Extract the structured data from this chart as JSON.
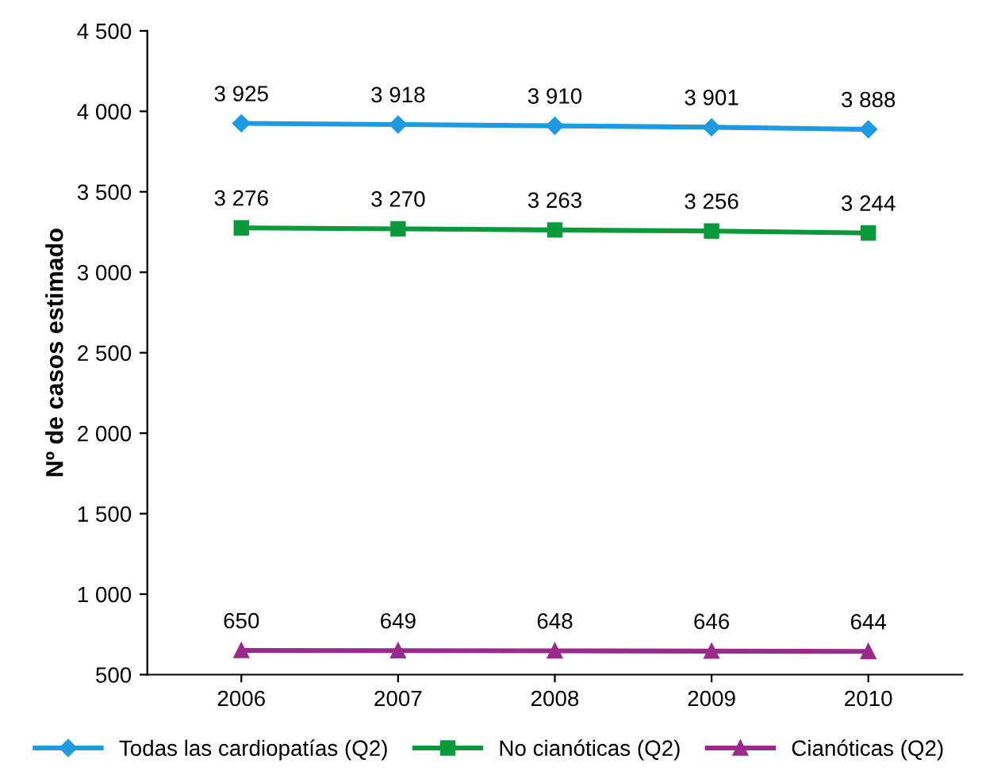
{
  "chart_data": {
    "type": "line",
    "ylabel": "Nº de casos estimado",
    "categories": [
      "2006",
      "2007",
      "2008",
      "2009",
      "2010"
    ],
    "series": [
      {
        "name": "Todas las cardiopatías (Q2)",
        "color": "#1e9be0",
        "marker": "diamond",
        "values": [
          3925,
          3918,
          3910,
          3901,
          3888
        ],
        "value_labels": [
          "3 925",
          "3 918",
          "3 910",
          "3 901",
          "3 888"
        ]
      },
      {
        "name": "No cianóticas (Q2)",
        "color": "#0a9a3c",
        "marker": "square",
        "values": [
          3276,
          3270,
          3263,
          3256,
          3244
        ],
        "value_labels": [
          "3 276",
          "3 270",
          "3 263",
          "3 256",
          "3 244"
        ]
      },
      {
        "name": "Cianóticas (Q2)",
        "color": "#9b2a8c",
        "marker": "triangle",
        "values": [
          650,
          649,
          648,
          646,
          644
        ],
        "value_labels": [
          "650",
          "649",
          "648",
          "646",
          "644"
        ]
      }
    ],
    "ylim": [
      500,
      4500
    ],
    "yticks": [
      500,
      {
        "value": 1000,
        "label": "1 000"
      },
      {
        "value": 1500,
        "label": "1 500"
      },
      {
        "value": 2000,
        "label": "2 000"
      },
      {
        "value": 2500,
        "label": "2 500"
      },
      {
        "value": 3000,
        "label": "3 000"
      },
      {
        "value": 3500,
        "label": "3 500"
      },
      {
        "value": 4000,
        "label": "4 000"
      },
      {
        "value": 4500,
        "label": "4 500"
      }
    ],
    "grid": false,
    "legend": "bottom",
    "line_style": "solid"
  }
}
